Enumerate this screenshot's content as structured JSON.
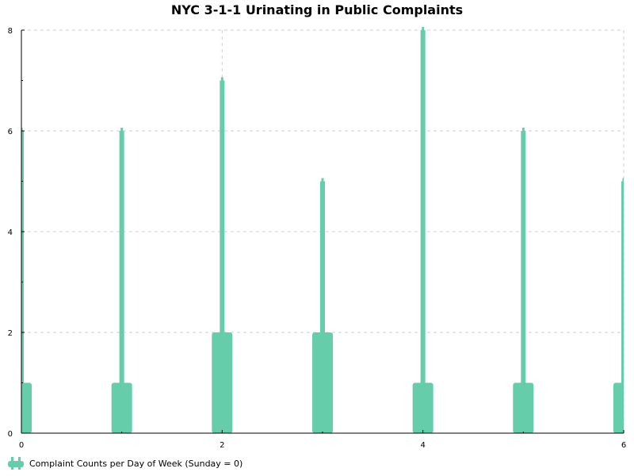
{
  "chart_data": {
    "type": "bar",
    "title": "NYC 3-1-1 Urinating in Public Complaints",
    "xlabel": "",
    "ylabel": "",
    "xlim": [
      0,
      6
    ],
    "ylim": [
      0,
      8
    ],
    "x_ticks": [
      0,
      2,
      4,
      6
    ],
    "y_ticks": [
      0,
      2,
      4,
      6,
      8
    ],
    "grid": true,
    "legend_position": "bottom-left",
    "series": [
      {
        "name": "Complaint Counts per Day of Week (Sunday = 0)",
        "color": "#66cdaa",
        "x": [
          0,
          1,
          2,
          3,
          4,
          5,
          6
        ],
        "values": [
          6,
          6,
          7,
          5,
          8,
          6,
          5
        ],
        "base_values": [
          1,
          1,
          2,
          2,
          1,
          1,
          1
        ]
      }
    ]
  }
}
